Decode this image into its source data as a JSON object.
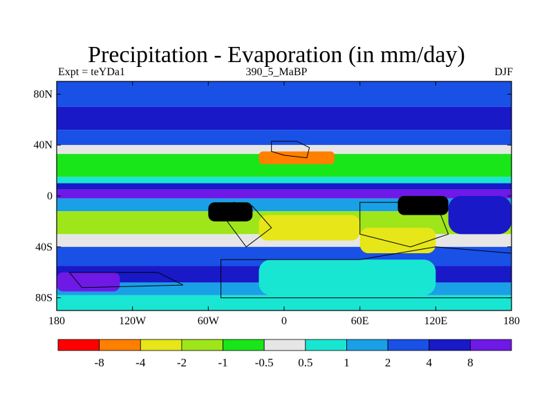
{
  "title": "Precipitation - Evaporation (in mm/day)",
  "subtitle_left": "Expt = teYDa1",
  "subtitle_center": "390_5_MaBP",
  "subtitle_right": "DJF",
  "map": {
    "projection": "cylindrical equidistant",
    "lon_range": [
      -180,
      180
    ],
    "lat_range": [
      -90,
      90
    ],
    "x_ticks": [
      {
        "value": -180,
        "label": "180"
      },
      {
        "value": -120,
        "label": "120W"
      },
      {
        "value": -60,
        "label": "60W"
      },
      {
        "value": 0,
        "label": "0"
      },
      {
        "value": 60,
        "label": "60E"
      },
      {
        "value": 120,
        "label": "120E"
      },
      {
        "value": 180,
        "label": "180"
      }
    ],
    "y_ticks": [
      {
        "value": 80,
        "label": "80N"
      },
      {
        "value": 40,
        "label": "40N"
      },
      {
        "value": 0,
        "label": "0"
      },
      {
        "value": -40,
        "label": "40S"
      },
      {
        "value": -80,
        "label": "80S"
      }
    ],
    "zonal_bands": [
      {
        "lat": [
          70,
          90
        ],
        "level": 8
      },
      {
        "lat": [
          52,
          70
        ],
        "level": 9
      },
      {
        "lat": [
          40,
          52
        ],
        "level": 8
      },
      {
        "lat": [
          33,
          40
        ],
        "level": 5
      },
      {
        "lat": [
          15,
          33
        ],
        "level": 4
      },
      {
        "lat": [
          10,
          15
        ],
        "level": 6
      },
      {
        "lat": [
          5,
          10
        ],
        "level": 9
      },
      {
        "lat": [
          -2,
          5
        ],
        "level": 10
      },
      {
        "lat": [
          -12,
          -2
        ],
        "level": 7
      },
      {
        "lat": [
          -30,
          -12
        ],
        "level": 3
      },
      {
        "lat": [
          -40,
          -30
        ],
        "level": 5
      },
      {
        "lat": [
          -55,
          -40
        ],
        "level": 8
      },
      {
        "lat": [
          -68,
          -55
        ],
        "level": 9
      },
      {
        "lat": [
          -78,
          -68
        ],
        "level": 7
      },
      {
        "lat": [
          -90,
          -78
        ],
        "level": 6
      }
    ],
    "regions": [
      {
        "lon": [
          -20,
          40
        ],
        "lat": [
          25,
          35
        ],
        "level": 1
      },
      {
        "lon": [
          -20,
          60
        ],
        "lat": [
          -35,
          -15
        ],
        "level": 2
      },
      {
        "lon": [
          -60,
          -25
        ],
        "lat": [
          -20,
          -5
        ],
        "level": 11
      },
      {
        "lon": [
          90,
          130
        ],
        "lat": [
          -15,
          0
        ],
        "level": 11
      },
      {
        "lon": [
          -180,
          -130
        ],
        "lat": [
          -75,
          -60
        ],
        "level": 10
      },
      {
        "lon": [
          -20,
          120
        ],
        "lat": [
          -78,
          -50
        ],
        "level": 6
      },
      {
        "lon": [
          60,
          120
        ],
        "lat": [
          -45,
          -25
        ],
        "level": 2
      },
      {
        "lon": [
          130,
          180
        ],
        "lat": [
          -30,
          0
        ],
        "level": 9
      }
    ],
    "land_outlines": [
      [
        [
          -10,
          43
        ],
        [
          10,
          43
        ],
        [
          20,
          38
        ],
        [
          18,
          30
        ],
        [
          0,
          32
        ],
        [
          -10,
          35
        ]
      ],
      [
        [
          -40,
          -5
        ],
        [
          -25,
          -8
        ],
        [
          -10,
          -25
        ],
        [
          -30,
          -40
        ],
        [
          -45,
          -20
        ]
      ],
      [
        [
          60,
          -5
        ],
        [
          120,
          -5
        ],
        [
          130,
          -30
        ],
        [
          100,
          -40
        ],
        [
          60,
          -30
        ]
      ],
      [
        [
          -170,
          -60
        ],
        [
          -100,
          -60
        ],
        [
          -80,
          -70
        ],
        [
          -160,
          -72
        ]
      ],
      [
        [
          -50,
          -50
        ],
        [
          60,
          -50
        ],
        [
          120,
          -40
        ],
        [
          180,
          -45
        ],
        [
          180,
          -80
        ],
        [
          -50,
          -80
        ]
      ]
    ]
  },
  "colorbar": {
    "colors": [
      "#ff0000",
      "#ff7f00",
      "#e6e619",
      "#9ee619",
      "#19e619",
      "#e6e6e6",
      "#19e6d2",
      "#19a0e6",
      "#1950e6",
      "#1919c8",
      "#6e19e6"
    ],
    "labels": [
      "-8",
      "-4",
      "-2",
      "-1",
      "-0.5",
      "0.5",
      "1",
      "2",
      "4",
      "8"
    ]
  }
}
